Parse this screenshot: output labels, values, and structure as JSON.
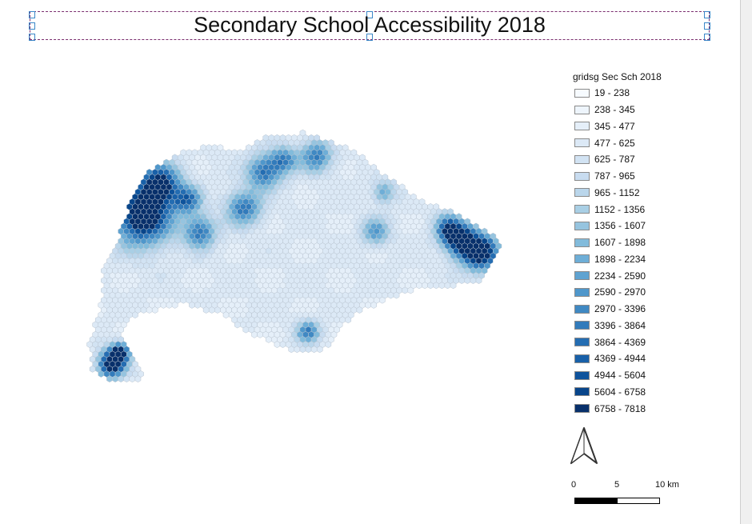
{
  "title": "Secondary School Accessibility 2018",
  "legend": {
    "title": "gridsg Sec Sch 2018",
    "classes": [
      {
        "label": "19 - 238",
        "color": "#f7fbff"
      },
      {
        "label": "238 - 345",
        "color": "#eef5fc"
      },
      {
        "label": "345 - 477",
        "color": "#e5eff9"
      },
      {
        "label": "477 - 625",
        "color": "#dce9f6"
      },
      {
        "label": "625 - 787",
        "color": "#d2e3f3"
      },
      {
        "label": "787 - 965",
        "color": "#c8dcf0"
      },
      {
        "label": "965 - 1152",
        "color": "#bad6eb"
      },
      {
        "label": "1152 - 1356",
        "color": "#a9cfe5"
      },
      {
        "label": "1356 - 1607",
        "color": "#96c4df"
      },
      {
        "label": "1607 - 1898",
        "color": "#82bbdb"
      },
      {
        "label": "1898 - 2234",
        "color": "#6eaed7"
      },
      {
        "label": "2234 - 2590",
        "color": "#5fa3d1"
      },
      {
        "label": "2590 - 2970",
        "color": "#4f97cb"
      },
      {
        "label": "2970 - 3396",
        "color": "#4089c3"
      },
      {
        "label": "3396 - 3864",
        "color": "#327bbb"
      },
      {
        "label": "3864 - 4369",
        "color": "#246db2"
      },
      {
        "label": "4369 - 4944",
        "color": "#1860a8"
      },
      {
        "label": "4944 - 5604",
        "color": "#0e539c"
      },
      {
        "label": "5604 - 6758",
        "color": "#08458a"
      },
      {
        "label": "6758 - 7818",
        "color": "#08306b"
      }
    ]
  },
  "north_arrow": {
    "icon": "north-arrow-icon"
  },
  "scale_bar": {
    "labels": [
      "0",
      "5",
      "10 km"
    ]
  },
  "hex_outline_color": "#b9c4d0"
}
